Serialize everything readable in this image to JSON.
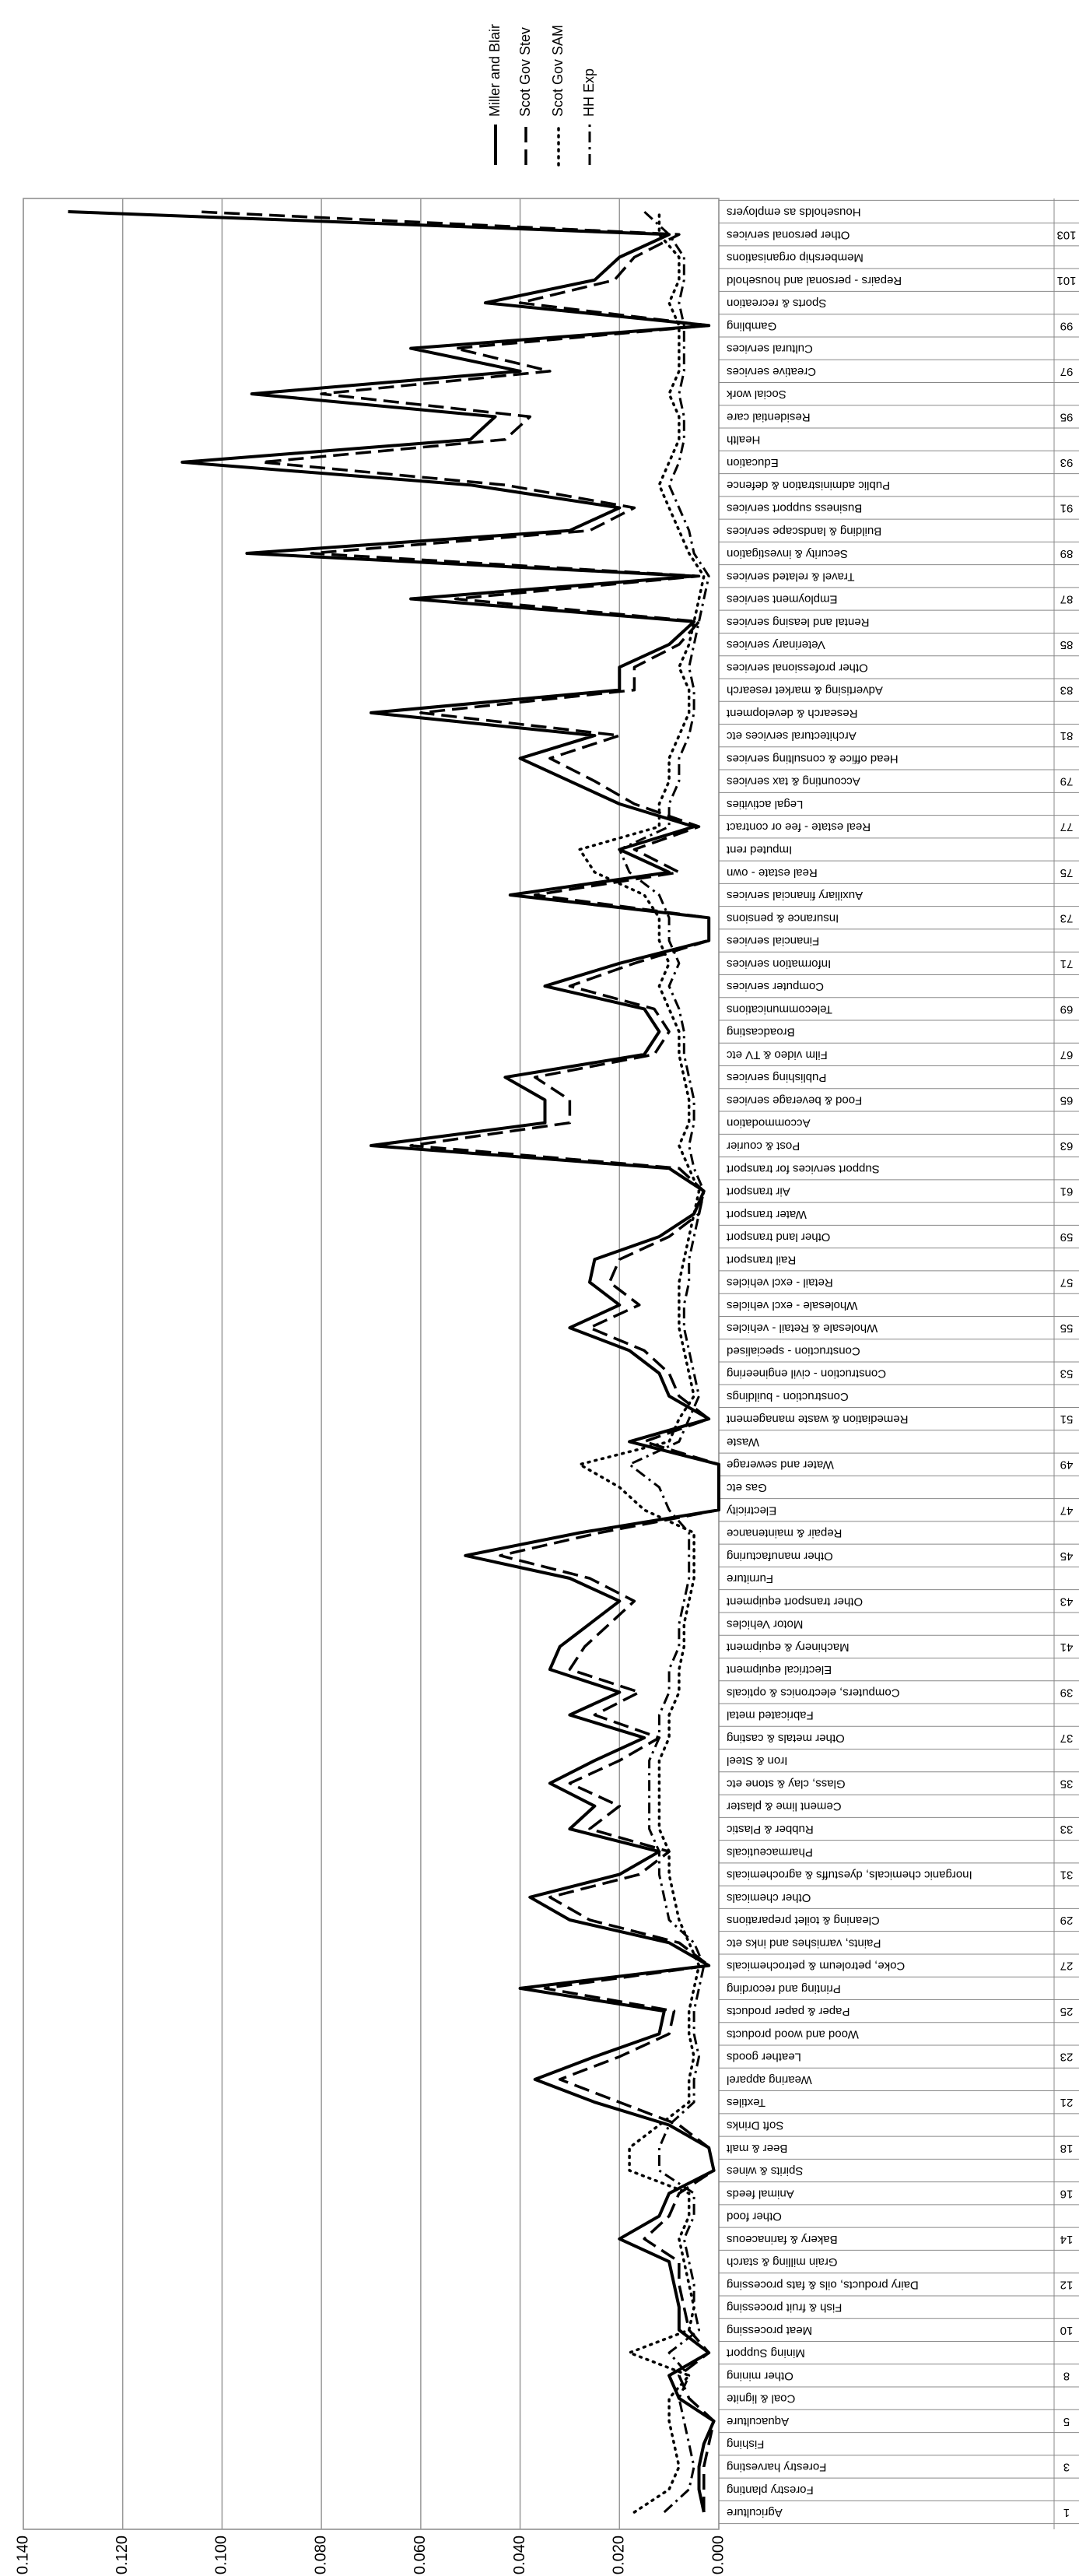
{
  "chart_data": {
    "type": "line",
    "categories": [
      "Agriculture",
      "Forestry planting",
      "Forestry harvesting",
      "Fishing",
      "Aquaculture",
      "Coal & lignite",
      "Other mining",
      "Mining Support",
      "Meat processing",
      "Fish & fruit processing",
      "Dairy products, oils & fats processing",
      "Grain milling & starch",
      "Bakery & farinaceous",
      "Other food",
      "Animal feeds",
      "Spirits & wines",
      "Beer & malt",
      "Soft Drinks",
      "Textiles",
      "Wearing apparel",
      "Leather goods",
      "Wood and wood products",
      "Paper & paper products",
      "Printing and recording",
      "Coke, petroleum & petrochemicals",
      "Paints, varnishes and inks etc",
      "Cleaning & toilet preparations",
      "Other chemicals",
      "Inorganic chemicals, dyestuffs & agrochemicals",
      "Pharmaceuticals",
      "Rubber & Plastic",
      "Cement lime & plaster",
      "Glass, clay & stone etc",
      "Iron & Steel",
      "Other metals & casting",
      "Fabricated metal",
      "Computers, electronics & opticals",
      "Electrical equipment",
      "Machinery & equipment",
      "Motor Vehicles",
      "Other transport equipment",
      "Furniture",
      "Other manufacturing",
      "Repair & maintenance",
      "Electricity",
      "Gas etc",
      "Water and sewerage",
      "Waste",
      "Remediation & waste management",
      "Construction - buildings",
      "Construction - civil engineering",
      "Construction - specialised",
      "Wholesale & Retail - vehicles",
      "Wholesale - excl vehicles",
      "Retail - excl vehicles",
      "Rail transport",
      "Other land transport",
      "Water transport",
      "Air transport",
      "Support services for transport",
      "Post & courier",
      "Accommodation",
      "Food & beverage services",
      "Publishing services",
      "Film video & TV etc",
      "Broadcasting",
      "Telecommunications",
      "Computer services",
      "Information services",
      "Financial services",
      "Insurance & pensions",
      "Auxiliary financial services",
      "Real estate - own",
      "Imputed rent",
      "Real estate - fee or contract",
      "Legal activities",
      "Accounting & tax services",
      "Head office & consulting services",
      "Architectural services etc",
      "Research & development",
      "Advertising & market research",
      "Other professional services",
      "Veterinary services",
      "Rental and leasing services",
      "Employment services",
      "Travel & related services",
      "Security & investigation",
      "Building & landscape services",
      "Business support services",
      "Public administration & defence",
      "Education",
      "Health",
      "Residential care",
      "Social work",
      "Creative services",
      "Cultural services",
      "Gambling",
      "Sports & recreation",
      "Repairs - personal and household",
      "Membership organisations",
      "Other personal services",
      "Households as employers"
    ],
    "category_codes": [
      1,
      null,
      3,
      null,
      5,
      null,
      8,
      null,
      10,
      null,
      12,
      null,
      14,
      null,
      16,
      null,
      18,
      null,
      21,
      null,
      23,
      null,
      25,
      null,
      27,
      null,
      29,
      null,
      31,
      null,
      33,
      null,
      35,
      null,
      37,
      null,
      39,
      null,
      41,
      null,
      43,
      null,
      45,
      null,
      47,
      null,
      49,
      null,
      51,
      null,
      53,
      null,
      55,
      null,
      57,
      null,
      59,
      null,
      61,
      null,
      63,
      null,
      65,
      null,
      67,
      null,
      69,
      null,
      71,
      null,
      73,
      null,
      75,
      null,
      77,
      null,
      79,
      null,
      81,
      null,
      83,
      null,
      85,
      null,
      87,
      null,
      89,
      null,
      91,
      null,
      93,
      null,
      95,
      null,
      97,
      null,
      99,
      null,
      101,
      null,
      103,
      null
    ],
    "series": [
      {
        "name": "Miller and Blair",
        "color": "#000000",
        "style": "solid",
        "values": [
          0.003,
          0.004,
          0.004,
          0.003,
          0.001,
          0.008,
          0.01,
          0.002,
          0.008,
          0.008,
          0.009,
          0.01,
          0.02,
          0.012,
          0.01,
          0.001,
          0.002,
          0.01,
          0.025,
          0.037,
          0.025,
          0.012,
          0.011,
          0.04,
          0.002,
          0.01,
          0.03,
          0.038,
          0.02,
          0.012,
          0.03,
          0.025,
          0.034,
          0.025,
          0.015,
          0.03,
          0.02,
          0.034,
          0.032,
          0.026,
          0.02,
          0.03,
          0.051,
          0.028,
          0,
          0,
          0,
          0.018,
          0.002,
          0.01,
          0.012,
          0.018,
          0.03,
          0.02,
          0.026,
          0.025,
          0.012,
          0.005,
          0.003,
          0.01,
          0.07,
          0.035,
          0.035,
          0.043,
          0.015,
          0.012,
          0.015,
          0.035,
          0.02,
          0.002,
          0.002,
          0.042,
          0.01,
          0.02,
          0.005,
          0.02,
          0.03,
          0.04,
          0.025,
          0.07,
          0.02,
          0.02,
          0.01,
          0.005,
          0.062,
          0.005,
          0.095,
          0.03,
          0.02,
          0.05,
          0.108,
          0.05,
          0.045,
          0.094,
          0.04,
          0.062,
          0.002,
          0.047,
          0.025,
          0.02,
          0.01,
          0.131
        ]
      },
      {
        "name": "Scot Gov Stev",
        "color": "#000000",
        "style": "dash",
        "values": [
          0.003,
          0.003,
          0.003,
          0.002,
          0.001,
          0.006,
          0.008,
          0.002,
          0.006,
          0.007,
          0.008,
          0.008,
          0.015,
          0.01,
          0.008,
          0.001,
          0.002,
          0.008,
          0.02,
          0.032,
          0.02,
          0.01,
          0.009,
          0.035,
          0.002,
          0.008,
          0.026,
          0.034,
          0.016,
          0.01,
          0.026,
          0.02,
          0.03,
          0.02,
          0.012,
          0.025,
          0.016,
          0.03,
          0.027,
          0.022,
          0.017,
          0.026,
          0.044,
          0.024,
          0,
          0,
          0,
          0.015,
          0.002,
          0.008,
          0.01,
          0.015,
          0.026,
          0.016,
          0.022,
          0.02,
          0.01,
          0.004,
          0.003,
          0.008,
          0.062,
          0.03,
          0.03,
          0.037,
          0.013,
          0.01,
          0.013,
          0.03,
          0.017,
          0.002,
          0.002,
          0.037,
          0.008,
          0.017,
          0.004,
          0.017,
          0.025,
          0.034,
          0.02,
          0.06,
          0.017,
          0.017,
          0.008,
          0.004,
          0.053,
          0.004,
          0.082,
          0.026,
          0.017,
          0.043,
          0.092,
          0.043,
          0.038,
          0.08,
          0.034,
          0.053,
          0.002,
          0.04,
          0.021,
          0.017,
          0.008,
          0.105
        ]
      },
      {
        "name": "Scot Gov SAM",
        "color": "#000000",
        "style": "dot",
        "values": [
          0.017,
          0.01,
          0.008,
          0.009,
          0.01,
          0.01,
          0.006,
          0.018,
          0.006,
          0.005,
          0.006,
          0.007,
          0.008,
          0.006,
          0.006,
          0.018,
          0.018,
          0.012,
          0.006,
          0.006,
          0.005,
          0.006,
          0.006,
          0.005,
          0.004,
          0.006,
          0.008,
          0.009,
          0.01,
          0.01,
          0.012,
          0.012,
          0.012,
          0.012,
          0.01,
          0.01,
          0.008,
          0.008,
          0.007,
          0.007,
          0.006,
          0.005,
          0.005,
          0.005,
          0.015,
          0.02,
          0.028,
          0.01,
          0.008,
          0.005,
          0.006,
          0.007,
          0.008,
          0.008,
          0.008,
          0.007,
          0.006,
          0.005,
          0.004,
          0.006,
          0.008,
          0.006,
          0.006,
          0.007,
          0.008,
          0.008,
          0.01,
          0.012,
          0.01,
          0.012,
          0.012,
          0.015,
          0.025,
          0.028,
          0.012,
          0.012,
          0.01,
          0.01,
          0.008,
          0.006,
          0.006,
          0.008,
          0.006,
          0.005,
          0.004,
          0.003,
          0.006,
          0.008,
          0.01,
          0.012,
          0.01,
          0.008,
          0.008,
          0.01,
          0.008,
          0.008,
          0.008,
          0.01,
          0.008,
          0.008,
          0.012,
          0.012
        ]
      },
      {
        "name": "HH Exp",
        "color": "#000000",
        "style": "dashdot",
        "values": [
          0.011,
          0.006,
          0.005,
          0.006,
          0.007,
          0.008,
          0.006,
          0.01,
          0.004,
          0.005,
          0.005,
          0.006,
          0.007,
          0.005,
          0.005,
          0.012,
          0.012,
          0.01,
          0.005,
          0.005,
          0.004,
          0.005,
          0.005,
          0.004,
          0.003,
          0.005,
          0.01,
          0.011,
          0.012,
          0.012,
          0.014,
          0.014,
          0.014,
          0.014,
          0.012,
          0.012,
          0.01,
          0.01,
          0.008,
          0.008,
          0.007,
          0.006,
          0.006,
          0.006,
          0.01,
          0.012,
          0.018,
          0.008,
          0.006,
          0.004,
          0.005,
          0.006,
          0.007,
          0.007,
          0.006,
          0.006,
          0.005,
          0.004,
          0.003,
          0.005,
          0.006,
          0.005,
          0.005,
          0.006,
          0.007,
          0.007,
          0.008,
          0.01,
          0.008,
          0.01,
          0.01,
          0.012,
          0.018,
          0.02,
          0.01,
          0.01,
          0.008,
          0.008,
          0.006,
          0.005,
          0.005,
          0.006,
          0.005,
          0.004,
          0.003,
          0.002,
          0.005,
          0.006,
          0.008,
          0.01,
          0.008,
          0.007,
          0.007,
          0.008,
          0.007,
          0.007,
          0.007,
          0.008,
          0.007,
          0.007,
          0.01,
          0.015
        ]
      }
    ],
    "ylim": [
      0,
      0.14
    ],
    "yticks": [
      {
        "value": 0,
        "label": "0.000"
      },
      {
        "value": 0.02,
        "label": "0.020"
      },
      {
        "value": 0.04,
        "label": "0.040"
      },
      {
        "value": 0.06,
        "label": "0.060"
      },
      {
        "value": 0.08,
        "label": "0.080"
      },
      {
        "value": 0.1,
        "label": "0.100"
      },
      {
        "value": 0.12,
        "label": "0.120"
      },
      {
        "value": 0.14,
        "label": "0.140"
      }
    ],
    "grid": true
  }
}
